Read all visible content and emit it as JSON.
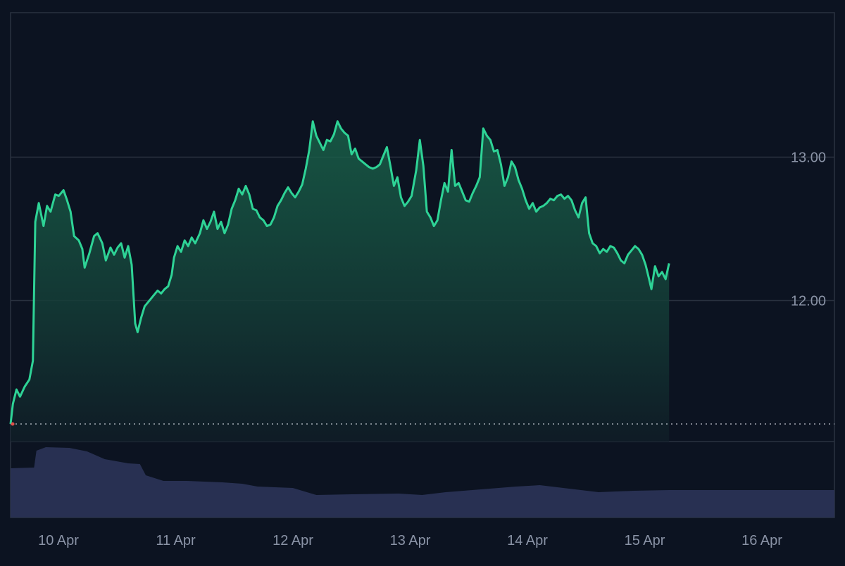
{
  "chart_data": {
    "type": "area",
    "title": "",
    "xlabel": "",
    "ylabel": "",
    "x_tick_labels": [
      "10 Apr",
      "11 Apr",
      "12 Apr",
      "13 Apr",
      "14 Apr",
      "15 Apr",
      "16 Apr"
    ],
    "y_tick_labels": [
      "13.00",
      "12.00"
    ],
    "y_ticks": [
      13.0,
      12.0
    ],
    "ylim": [
      11.14,
      14.0
    ],
    "reference_line": 11.14,
    "grid": true,
    "colors": {
      "background": "#0c1321",
      "line": "#2ed396",
      "area_top": "#1a6a4e",
      "area_bottom": "#0f1c26",
      "volume": "#2b3458",
      "grid": "#2a3240",
      "text": "#8a93a6",
      "reference_line": "#c9ced8",
      "start_marker": "#e0504a"
    },
    "series": [
      {
        "values": [
          [
            0.0,
            11.14
          ],
          [
            0.02,
            11.28
          ],
          [
            0.05,
            11.38
          ],
          [
            0.08,
            11.33
          ],
          [
            0.12,
            11.4
          ],
          [
            0.16,
            11.45
          ],
          [
            0.19,
            11.58
          ],
          [
            0.21,
            12.55
          ],
          [
            0.24,
            12.68
          ],
          [
            0.28,
            12.52
          ],
          [
            0.31,
            12.66
          ],
          [
            0.34,
            12.62
          ],
          [
            0.38,
            12.74
          ],
          [
            0.41,
            12.73
          ],
          [
            0.45,
            12.77
          ],
          [
            0.48,
            12.7
          ],
          [
            0.51,
            12.62
          ],
          [
            0.54,
            12.45
          ],
          [
            0.58,
            12.42
          ],
          [
            0.61,
            12.36
          ],
          [
            0.63,
            12.23
          ],
          [
            0.67,
            12.33
          ],
          [
            0.71,
            12.45
          ],
          [
            0.74,
            12.47
          ],
          [
            0.78,
            12.4
          ],
          [
            0.81,
            12.28
          ],
          [
            0.85,
            12.37
          ],
          [
            0.88,
            12.32
          ],
          [
            0.91,
            12.37
          ],
          [
            0.94,
            12.4
          ],
          [
            0.97,
            12.3
          ],
          [
            1.0,
            12.38
          ],
          [
            1.03,
            12.25
          ],
          [
            1.06,
            11.84
          ],
          [
            1.08,
            11.78
          ],
          [
            1.11,
            11.88
          ],
          [
            1.14,
            11.96
          ],
          [
            1.18,
            12.0
          ],
          [
            1.21,
            12.03
          ],
          [
            1.25,
            12.07
          ],
          [
            1.28,
            12.05
          ],
          [
            1.31,
            12.08
          ],
          [
            1.34,
            12.1
          ],
          [
            1.37,
            12.18
          ],
          [
            1.39,
            12.3
          ],
          [
            1.42,
            12.38
          ],
          [
            1.45,
            12.34
          ],
          [
            1.48,
            12.42
          ],
          [
            1.51,
            12.38
          ],
          [
            1.54,
            12.44
          ],
          [
            1.57,
            12.4
          ],
          [
            1.61,
            12.47
          ],
          [
            1.64,
            12.56
          ],
          [
            1.67,
            12.5
          ],
          [
            1.7,
            12.55
          ],
          [
            1.73,
            12.62
          ],
          [
            1.76,
            12.5
          ],
          [
            1.79,
            12.55
          ],
          [
            1.82,
            12.47
          ],
          [
            1.85,
            12.53
          ],
          [
            1.88,
            12.64
          ],
          [
            1.91,
            12.7
          ],
          [
            1.94,
            12.78
          ],
          [
            1.97,
            12.74
          ],
          [
            2.0,
            12.8
          ],
          [
            2.03,
            12.74
          ],
          [
            2.06,
            12.64
          ],
          [
            2.09,
            12.63
          ],
          [
            2.12,
            12.58
          ],
          [
            2.15,
            12.56
          ],
          [
            2.18,
            12.52
          ],
          [
            2.21,
            12.53
          ],
          [
            2.24,
            12.58
          ],
          [
            2.27,
            12.66
          ],
          [
            2.3,
            12.7
          ],
          [
            2.33,
            12.75
          ],
          [
            2.36,
            12.79
          ],
          [
            2.39,
            12.75
          ],
          [
            2.42,
            12.72
          ],
          [
            2.45,
            12.76
          ],
          [
            2.48,
            12.81
          ],
          [
            2.51,
            12.92
          ],
          [
            2.54,
            13.05
          ],
          [
            2.57,
            13.25
          ],
          [
            2.6,
            13.15
          ],
          [
            2.63,
            13.1
          ],
          [
            2.66,
            13.05
          ],
          [
            2.69,
            13.12
          ],
          [
            2.72,
            13.11
          ],
          [
            2.75,
            13.16
          ],
          [
            2.78,
            13.25
          ],
          [
            2.81,
            13.2
          ],
          [
            2.84,
            13.17
          ],
          [
            2.87,
            13.15
          ],
          [
            2.9,
            13.02
          ],
          [
            2.93,
            13.06
          ],
          [
            2.96,
            12.99
          ],
          [
            2.99,
            12.97
          ],
          [
            3.02,
            12.95
          ],
          [
            3.05,
            12.93
          ],
          [
            3.08,
            12.92
          ],
          [
            3.11,
            12.93
          ],
          [
            3.14,
            12.95
          ],
          [
            3.17,
            13.01
          ],
          [
            3.2,
            13.07
          ],
          [
            3.23,
            12.94
          ],
          [
            3.26,
            12.8
          ],
          [
            3.29,
            12.86
          ],
          [
            3.32,
            12.72
          ],
          [
            3.35,
            12.66
          ],
          [
            3.38,
            12.69
          ],
          [
            3.41,
            12.73
          ],
          [
            3.45,
            12.91
          ],
          [
            3.48,
            13.12
          ],
          [
            3.51,
            12.94
          ],
          [
            3.54,
            12.62
          ],
          [
            3.57,
            12.58
          ],
          [
            3.6,
            12.52
          ],
          [
            3.63,
            12.56
          ],
          [
            3.66,
            12.7
          ],
          [
            3.69,
            12.82
          ],
          [
            3.72,
            12.76
          ],
          [
            3.75,
            13.05
          ],
          [
            3.78,
            12.8
          ],
          [
            3.81,
            12.82
          ],
          [
            3.84,
            12.76
          ],
          [
            3.87,
            12.7
          ],
          [
            3.9,
            12.69
          ],
          [
            3.93,
            12.75
          ],
          [
            3.96,
            12.8
          ],
          [
            3.99,
            12.86
          ],
          [
            4.02,
            13.2
          ],
          [
            4.05,
            13.15
          ],
          [
            4.08,
            13.12
          ],
          [
            4.11,
            13.04
          ],
          [
            4.14,
            13.05
          ],
          [
            4.17,
            12.95
          ],
          [
            4.2,
            12.8
          ],
          [
            4.23,
            12.86
          ],
          [
            4.26,
            12.97
          ],
          [
            4.29,
            12.93
          ],
          [
            4.32,
            12.84
          ],
          [
            4.35,
            12.78
          ],
          [
            4.38,
            12.7
          ],
          [
            4.41,
            12.64
          ],
          [
            4.44,
            12.68
          ],
          [
            4.47,
            12.62
          ],
          [
            4.5,
            12.65
          ],
          [
            4.53,
            12.66
          ],
          [
            4.56,
            12.68
          ],
          [
            4.59,
            12.71
          ],
          [
            4.62,
            12.7
          ],
          [
            4.65,
            12.73
          ],
          [
            4.68,
            12.74
          ],
          [
            4.71,
            12.71
          ],
          [
            4.74,
            12.73
          ],
          [
            4.77,
            12.7
          ],
          [
            4.8,
            12.63
          ],
          [
            4.83,
            12.58
          ],
          [
            4.86,
            12.68
          ],
          [
            4.89,
            12.72
          ],
          [
            4.92,
            12.47
          ],
          [
            4.95,
            12.4
          ],
          [
            4.98,
            12.38
          ],
          [
            5.01,
            12.33
          ],
          [
            5.04,
            12.36
          ],
          [
            5.07,
            12.34
          ],
          [
            5.1,
            12.38
          ],
          [
            5.13,
            12.37
          ],
          [
            5.16,
            12.33
          ],
          [
            5.19,
            12.28
          ],
          [
            5.22,
            12.26
          ],
          [
            5.25,
            12.32
          ],
          [
            5.28,
            12.35
          ],
          [
            5.31,
            12.38
          ],
          [
            5.34,
            12.36
          ],
          [
            5.37,
            12.32
          ],
          [
            5.4,
            12.25
          ],
          [
            5.43,
            12.15
          ],
          [
            5.45,
            12.08
          ],
          [
            5.48,
            12.24
          ],
          [
            5.51,
            12.17
          ],
          [
            5.54,
            12.2
          ],
          [
            5.57,
            12.15
          ],
          [
            5.6,
            12.26
          ]
        ]
      }
    ],
    "volume": [
      [
        0.0,
        0.7
      ],
      [
        0.2,
        0.71
      ],
      [
        0.22,
        0.95
      ],
      [
        0.3,
        1.0
      ],
      [
        0.5,
        0.99
      ],
      [
        0.65,
        0.94
      ],
      [
        0.8,
        0.83
      ],
      [
        1.0,
        0.77
      ],
      [
        1.1,
        0.76
      ],
      [
        1.15,
        0.6
      ],
      [
        1.3,
        0.52
      ],
      [
        1.5,
        0.52
      ],
      [
        1.8,
        0.5
      ],
      [
        1.97,
        0.48
      ],
      [
        2.1,
        0.44
      ],
      [
        2.4,
        0.42
      ],
      [
        2.6,
        0.32
      ],
      [
        2.9,
        0.33
      ],
      [
        3.3,
        0.34
      ],
      [
        3.5,
        0.32
      ],
      [
        3.7,
        0.36
      ],
      [
        4.0,
        0.4
      ],
      [
        4.3,
        0.44
      ],
      [
        4.5,
        0.46
      ],
      [
        4.8,
        0.4
      ],
      [
        5.0,
        0.36
      ],
      [
        5.3,
        0.38
      ],
      [
        5.6,
        0.39
      ]
    ]
  }
}
